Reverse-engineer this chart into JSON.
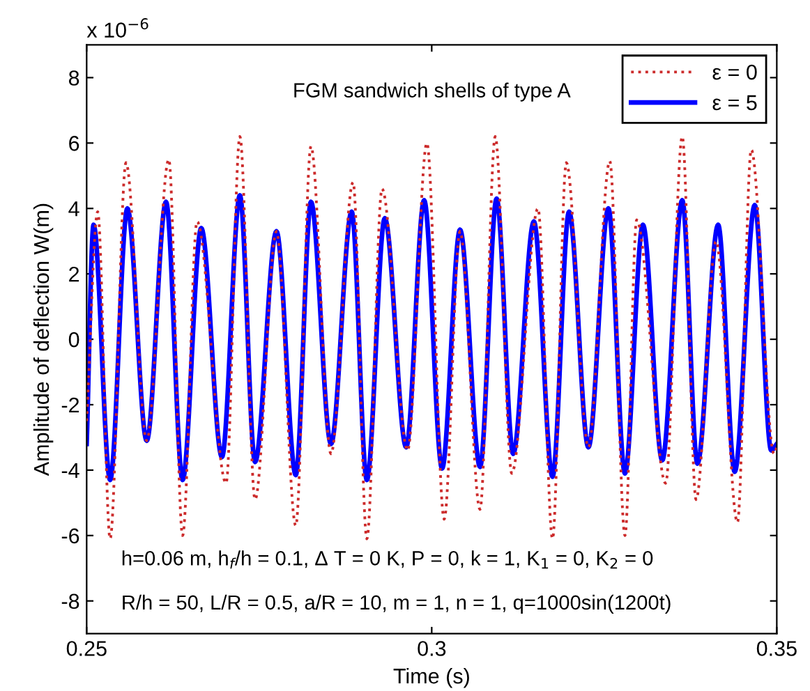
{
  "chart_data": {
    "type": "line",
    "title": "FGM sandwich shells of type A",
    "xlabel": "Time (s)",
    "ylabel": "Amplitude of deflection W(m)",
    "annotations": [
      "x 10$^{−6}$",
      "h=0.06 m, h$_{f}$/h = 0.1, Δ T = 0 K, P = 0, k = 1, K$_{1}$ = 0, K$_{2}$ = 0",
      "R/h = 50, L/R = 0.5, a/R = 10, m = 1, n = 1, q=1000sin(1200t)"
    ],
    "xlim": [
      0.25,
      0.35
    ],
    "xticks": [
      0.25,
      0.3,
      0.35
    ],
    "ylim": [
      -9,
      9
    ],
    "yticks": [
      -8,
      -6,
      -4,
      -2,
      0,
      2,
      4,
      6,
      8
    ],
    "grid": false,
    "legend": "top right",
    "marker": "none",
    "series": [
      {
        "name": "ε = 0",
        "color": "#cc2b2b",
        "line_style": "dotted",
        "x": [
          0.25,
          0.2516,
          0.2534,
          0.2557,
          0.2587,
          0.2619,
          0.2639,
          0.266,
          0.2702,
          0.2722,
          0.2744,
          0.2775,
          0.2803,
          0.2825,
          0.2854,
          0.2886,
          0.2906,
          0.2928,
          0.2965,
          0.2993,
          0.3018,
          0.3041,
          0.307,
          0.3092,
          0.3116,
          0.3154,
          0.3175,
          0.3195,
          0.3227,
          0.3258,
          0.328,
          0.3297,
          0.3339,
          0.3363,
          0.3383,
          0.3412,
          0.3443,
          0.3463,
          0.3496,
          0.35
        ],
        "values": [
          -2.5,
          3.9,
          -6.1,
          5.4,
          -3.1,
          5.5,
          -6.0,
          3.6,
          -4.4,
          6.2,
          -4.9,
          3.3,
          -5.7,
          5.9,
          -3.5,
          4.8,
          -6.1,
          4.6,
          -3.4,
          6.0,
          -5.5,
          3.3,
          -5.2,
          6.2,
          -4.1,
          4.0,
          -6.1,
          5.4,
          -3.3,
          5.45,
          -6.0,
          3.65,
          -4.4,
          6.2,
          -4.9,
          3.0,
          -5.6,
          5.8,
          -3.5,
          -3.3
        ]
      },
      {
        "name": "ε = 5",
        "color": "#0000ff",
        "line_style": "solid",
        "x": [
          0.25,
          0.251,
          0.2534,
          0.2559,
          0.2587,
          0.2615,
          0.2639,
          0.2666,
          0.2696,
          0.2722,
          0.2744,
          0.2775,
          0.2803,
          0.2825,
          0.2854,
          0.2884,
          0.2906,
          0.2932,
          0.2963,
          0.2989,
          0.3015,
          0.3041,
          0.307,
          0.3094,
          0.3118,
          0.3148,
          0.3175,
          0.3199,
          0.3227,
          0.3256,
          0.328,
          0.3306,
          0.3334,
          0.3363,
          0.3385,
          0.3415,
          0.3439,
          0.3468,
          0.3492,
          0.35
        ],
        "values": [
          -3.2,
          3.5,
          -4.3,
          4.0,
          -3.1,
          4.2,
          -4.3,
          3.4,
          -3.6,
          4.4,
          -3.75,
          3.3,
          -4.15,
          4.2,
          -3.2,
          3.9,
          -4.3,
          3.7,
          -3.3,
          4.25,
          -3.95,
          3.35,
          -3.9,
          4.3,
          -3.5,
          3.6,
          -4.2,
          3.9,
          -3.3,
          4.0,
          -4.1,
          3.5,
          -3.7,
          4.25,
          -3.8,
          3.5,
          -4.05,
          4.1,
          -3.4,
          -3.2
        ]
      }
    ]
  }
}
